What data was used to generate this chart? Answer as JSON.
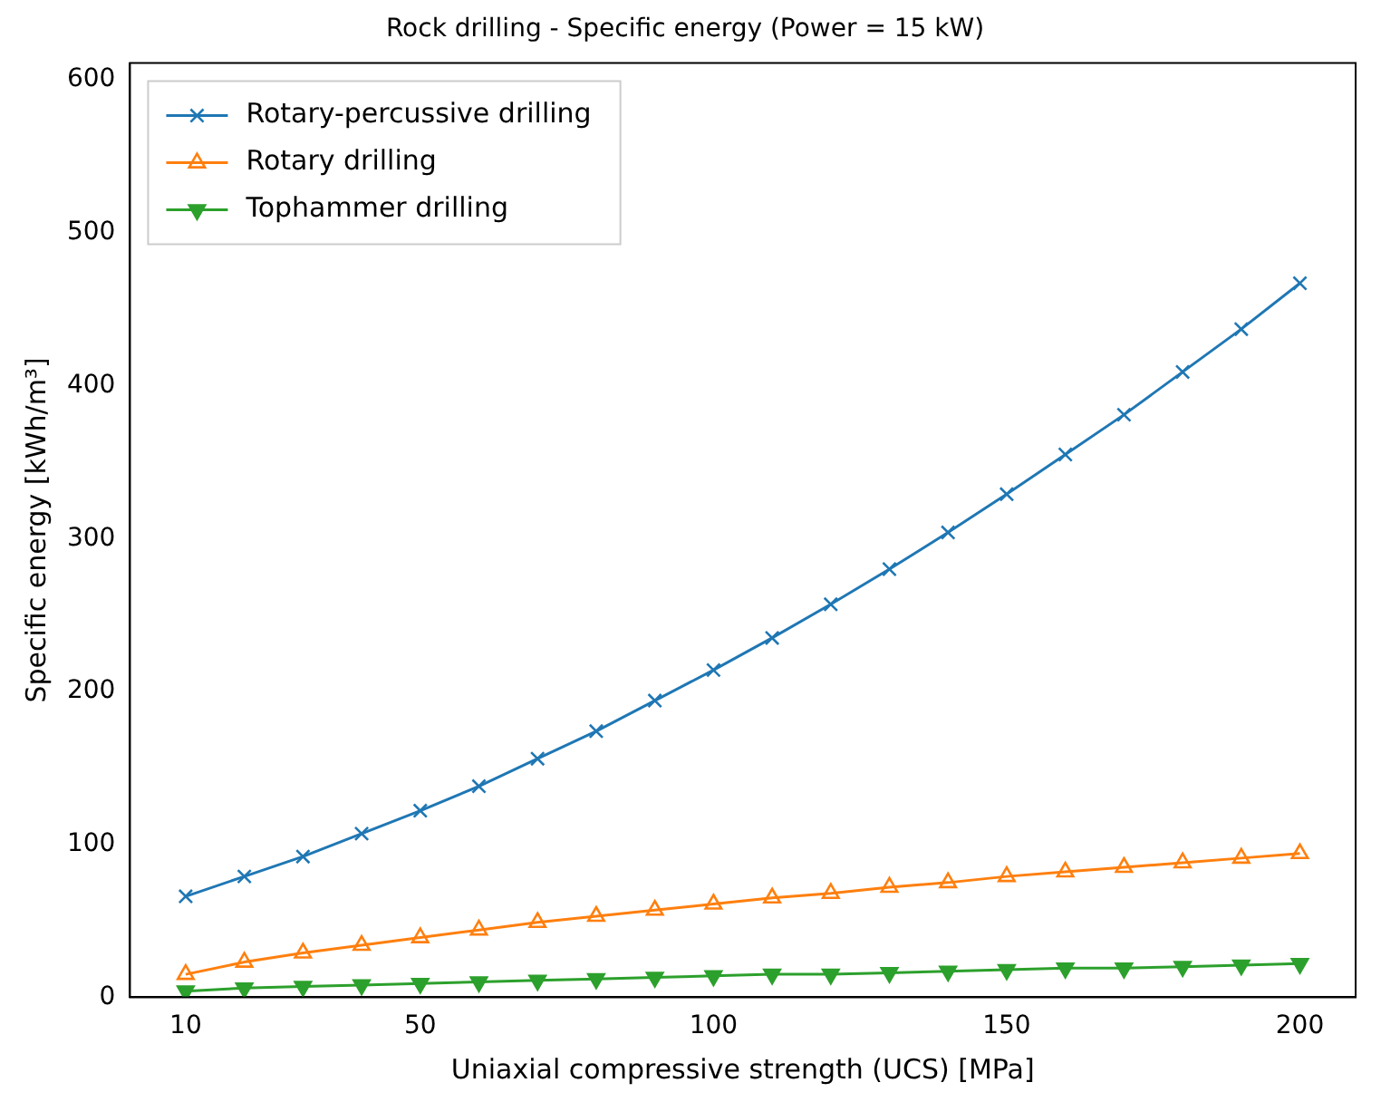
{
  "chart_data": {
    "type": "line",
    "title": "Rock drilling - Specific energy (Power = 15 kW)",
    "xlabel": "Uniaxial compressive strength (UCS) [MPa]",
    "ylabel": "Specific energy [kWh/m³]",
    "x": [
      10,
      20,
      30,
      40,
      50,
      60,
      70,
      80,
      90,
      100,
      110,
      120,
      130,
      140,
      150,
      160,
      170,
      180,
      190,
      200
    ],
    "series": [
      {
        "name": "Rotary-percussive drilling",
        "color": "#1f77b4",
        "marker": "cross",
        "values": [
          66,
          79,
          92,
          107,
          122,
          138,
          156,
          174,
          194,
          214,
          235,
          257,
          280,
          304,
          329,
          355,
          381,
          409,
          437,
          467
        ]
      },
      {
        "name": "Rotary drilling",
        "color": "#ff7f0e",
        "marker": "triangle",
        "values": [
          15,
          23,
          29,
          34,
          39,
          44,
          49,
          53,
          57,
          61,
          65,
          68,
          72,
          75,
          79,
          82,
          85,
          88,
          91,
          94
        ]
      },
      {
        "name": "Tophammer drilling",
        "color": "#2ca02c",
        "marker": "triangle",
        "values": [
          4,
          6,
          7,
          8,
          9,
          10,
          11,
          12,
          13,
          14,
          15,
          15,
          16,
          17,
          18,
          19,
          19,
          20,
          21,
          22
        ]
      }
    ],
    "xlim": [
      0.5,
      209.5
    ],
    "xticks": [
      10,
      50,
      100,
      150,
      200
    ],
    "ylim": [
      0,
      611
    ],
    "yticks": [
      0,
      100,
      200,
      300,
      400,
      500,
      600
    ],
    "legend": "top left",
    "grid": false,
    "line_style": "solid"
  }
}
